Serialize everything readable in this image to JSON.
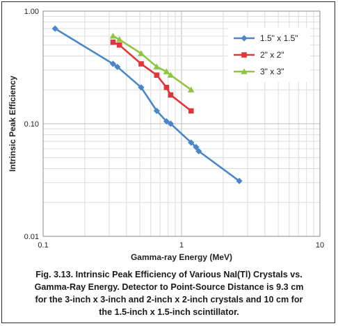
{
  "chart_data": {
    "type": "line",
    "xscale": "log",
    "yscale": "log",
    "xlim": [
      0.1,
      10
    ],
    "ylim": [
      0.01,
      1.0
    ],
    "xlabel": "Gamma-ray Energy (MeV)",
    "ylabel": "Intrinsic Peak Efficiency",
    "x_tick_labels": [
      "0.1",
      "1",
      "10"
    ],
    "y_tick_labels": [
      "0.01",
      "0.10",
      "1.00"
    ],
    "grid": true,
    "legend_position": "top-right",
    "series": [
      {
        "name": "1.5\" x 1.5\"",
        "color": "#4a86c8",
        "marker": "diamond",
        "points": [
          [
            0.122,
            0.7
          ],
          [
            0.32,
            0.34
          ],
          [
            0.344,
            0.32
          ],
          [
            0.511,
            0.21
          ],
          [
            0.662,
            0.13
          ],
          [
            0.779,
            0.105
          ],
          [
            0.835,
            0.1
          ],
          [
            1.173,
            0.068
          ],
          [
            1.275,
            0.062
          ],
          [
            1.332,
            0.057
          ],
          [
            2.614,
            0.031
          ]
        ]
      },
      {
        "name": "2\" x 2\"",
        "color": "#e0353b",
        "marker": "square",
        "points": [
          [
            0.32,
            0.53
          ],
          [
            0.356,
            0.5
          ],
          [
            0.511,
            0.34
          ],
          [
            0.662,
            0.27
          ],
          [
            0.779,
            0.21
          ],
          [
            0.835,
            0.18
          ],
          [
            1.173,
            0.13
          ]
        ]
      },
      {
        "name": "3\" x 3\"",
        "color": "#8ec63f",
        "marker": "triangle",
        "points": [
          [
            0.32,
            0.6
          ],
          [
            0.356,
            0.56
          ],
          [
            0.511,
            0.42
          ],
          [
            0.662,
            0.32
          ],
          [
            0.779,
            0.29
          ],
          [
            0.835,
            0.27
          ],
          [
            1.173,
            0.2
          ]
        ]
      }
    ]
  },
  "caption": {
    "line1": "Fig. 3.13.  Intrinsic Peak Efficiency of Various NaI(Tl) Crystals vs.",
    "line2": "Gamma-Ray Energy. Detector to Point-Source Distance is 9.3 cm",
    "line3": "for the 3-inch x 3-inch and 2-inch x 2-inch crystals and 10 cm for",
    "line4": "the 1.5-inch x 1.5-inch scintillator."
  }
}
